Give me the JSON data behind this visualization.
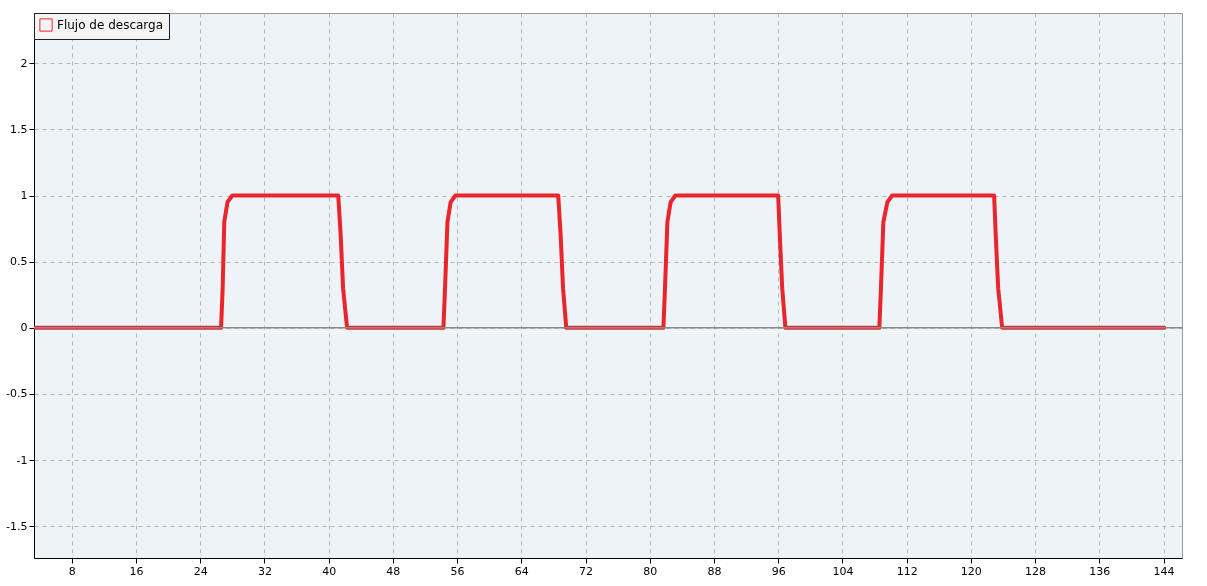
{
  "chart_data": {
    "type": "line",
    "x": [
      3.4,
      26.6,
      26.8,
      27.0,
      27.4,
      28.0,
      41.2,
      41.5,
      41.8,
      42.3,
      54.3,
      54.5,
      54.8,
      55.2,
      55.8,
      68.6,
      68.9,
      69.2,
      69.6,
      81.7,
      81.9,
      82.2,
      82.6,
      83.2,
      96.0,
      96.2,
      96.5,
      96.9,
      108.6,
      108.8,
      109.1,
      109.6,
      110.2,
      122.9,
      123.1,
      123.4,
      123.9,
      144.1
    ],
    "series": [
      {
        "name": "Flujo de descarga",
        "color": "#e8262c",
        "values": [
          0,
          0,
          0.3,
          0.8,
          0.95,
          1,
          1,
          0.7,
          0.3,
          0,
          0,
          0.3,
          0.8,
          0.95,
          1,
          1,
          0.7,
          0.3,
          0,
          0,
          0.3,
          0.8,
          0.95,
          1,
          1,
          0.7,
          0.3,
          0,
          0,
          0.3,
          0.8,
          0.95,
          1,
          1,
          0.7,
          0.3,
          0,
          0
        ]
      }
    ],
    "xlim": [
      3.3,
      146.3
    ],
    "xticks": [
      8,
      16,
      24,
      32,
      40,
      48,
      56,
      64,
      72,
      80,
      88,
      96,
      104,
      112,
      120,
      128,
      136,
      144
    ],
    "ylim": [
      -1.74,
      2.38
    ],
    "yticks": [
      -1.5,
      -1,
      -0.5,
      0,
      0.5,
      1,
      1.5,
      2
    ],
    "ref_lines": [
      {
        "axis": "y",
        "value": 0,
        "color": "#8a8a8a"
      }
    ],
    "grid": true,
    "legend": "top left",
    "marker": "none",
    "line_style": "solid"
  }
}
